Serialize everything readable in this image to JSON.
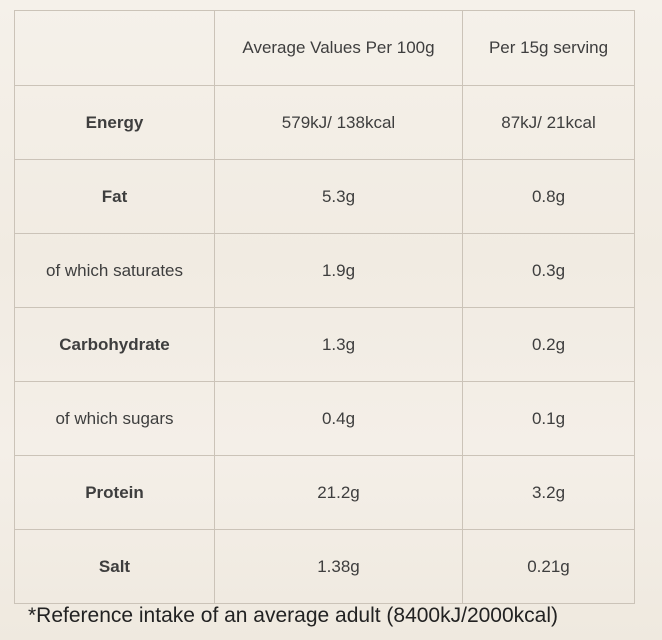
{
  "table": {
    "header": [
      "Average Values Per 100g",
      "Per 15g serving"
    ],
    "rows": [
      [
        "Energy",
        "579kJ/ 138kcal",
        "87kJ/ 21kcal"
      ],
      [
        "Fat",
        "5.3g",
        "0.8g"
      ],
      [
        "of which saturates",
        "1.9g",
        "0.3g"
      ],
      [
        "Carbohydrate",
        "1.3g",
        "0.2g"
      ],
      [
        "of which sugars",
        "0.4g",
        "0.1g"
      ],
      [
        "Protein",
        "21.2g",
        "3.2g"
      ],
      [
        "Salt",
        "1.38g",
        "0.21g"
      ]
    ]
  },
  "footnote": "*Reference intake of an average adult (8400kJ/2000kcal)"
}
